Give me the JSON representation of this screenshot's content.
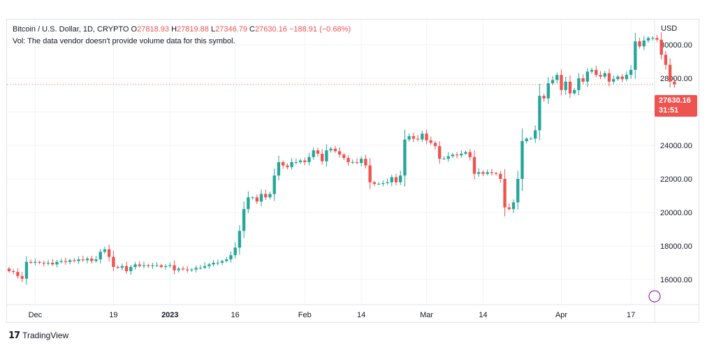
{
  "legend": {
    "symbol": "Bitcoin / U.S. Dollar, 1D, CRYPTO",
    "o_label": "O",
    "o": "27818.93",
    "h_label": "H",
    "h": "27819.88",
    "l_label": "L",
    "l": "27346.79",
    "c_label": "C",
    "c": "27630.16",
    "change": "−188.91 (−0.68%)"
  },
  "volume_note": "Vol: The data vendor doesn't provide volume data for this symbol.",
  "currency": "USD",
  "last_price": {
    "value": "27630.16",
    "countdown": "31:51"
  },
  "brand": "TradingView",
  "colors": {
    "up": "#26a69a",
    "down": "#ef5350",
    "grid": "#f0f3fa",
    "text": "#131722"
  },
  "chart_data": {
    "type": "candlestick",
    "ylim": [
      14500,
      31500
    ],
    "y_ticks": [
      16000,
      18000,
      20000,
      22000,
      24000,
      26000,
      28000,
      30000
    ],
    "y_tick_labels": [
      "16000.00",
      "18000.00",
      "20000.00",
      "22000.00",
      "24000.00",
      "26000.00",
      "28000.00",
      "30000.00"
    ],
    "x_start": "2022-11-25",
    "x_end": "2023-04-21",
    "x_ticks": [
      {
        "date": "2022-12-01",
        "label": "Dec"
      },
      {
        "date": "2022-12-19",
        "label": "19"
      },
      {
        "date": "2023-01-01",
        "label": "2023"
      },
      {
        "date": "2023-01-16",
        "label": "16"
      },
      {
        "date": "2023-02-01",
        "label": "Feb"
      },
      {
        "date": "2023-02-14",
        "label": "14"
      },
      {
        "date": "2023-03-01",
        "label": "Mar"
      },
      {
        "date": "2023-03-14",
        "label": "14"
      },
      {
        "date": "2023-04-01",
        "label": "Apr"
      },
      {
        "date": "2023-04-17",
        "label": "17"
      }
    ],
    "last_price": 27630.16,
    "closes": [
      16500,
      16450,
      16200,
      16050,
      17050,
      17000,
      17050,
      17000,
      16950,
      17000,
      16900,
      17050,
      17100,
      17050,
      17150,
      17100,
      17200,
      17150,
      17250,
      17100,
      17200,
      17650,
      17800,
      17350,
      16750,
      16700,
      16800,
      16500,
      16750,
      16900,
      16800,
      16850,
      16800,
      16850,
      16850,
      16750,
      16800,
      16850,
      16550,
      16650,
      16600,
      16550,
      16600,
      16700,
      16700,
      16800,
      16900,
      17000,
      17000,
      17100,
      17200,
      17450,
      17900,
      18900,
      20200,
      20900,
      20900,
      20650,
      21100,
      20900,
      21100,
      22200,
      23000,
      22800,
      22700,
      23000,
      23000,
      23100,
      23000,
      23300,
      23700,
      23500,
      23050,
      23700,
      23800,
      23650,
      23450,
      23250,
      23000,
      23000,
      22950,
      23200,
      22800,
      21800,
      21700,
      21700,
      21750,
      21800,
      22100,
      21800,
      22200,
      24350,
      24550,
      24400,
      24350,
      24700,
      24300,
      24150,
      23950,
      23200,
      23200,
      23350,
      23450,
      23400,
      23500,
      23600,
      23300,
      22300,
      22400,
      22300,
      22400,
      22350,
      22300,
      22000,
      20300,
      20200,
      20600,
      22000,
      24250,
      24400,
      24400,
      24900,
      26950,
      26800,
      27700,
      27900,
      28200,
      27300,
      27800,
      27100,
      27300,
      28000,
      27800,
      28400,
      28500,
      28200,
      28100,
      28300,
      27800,
      27950,
      28100,
      27950,
      28200,
      28500,
      30200,
      29900,
      30250,
      30400,
      30400,
      30300,
      29400,
      28800,
      27800,
      27630.16
    ]
  }
}
